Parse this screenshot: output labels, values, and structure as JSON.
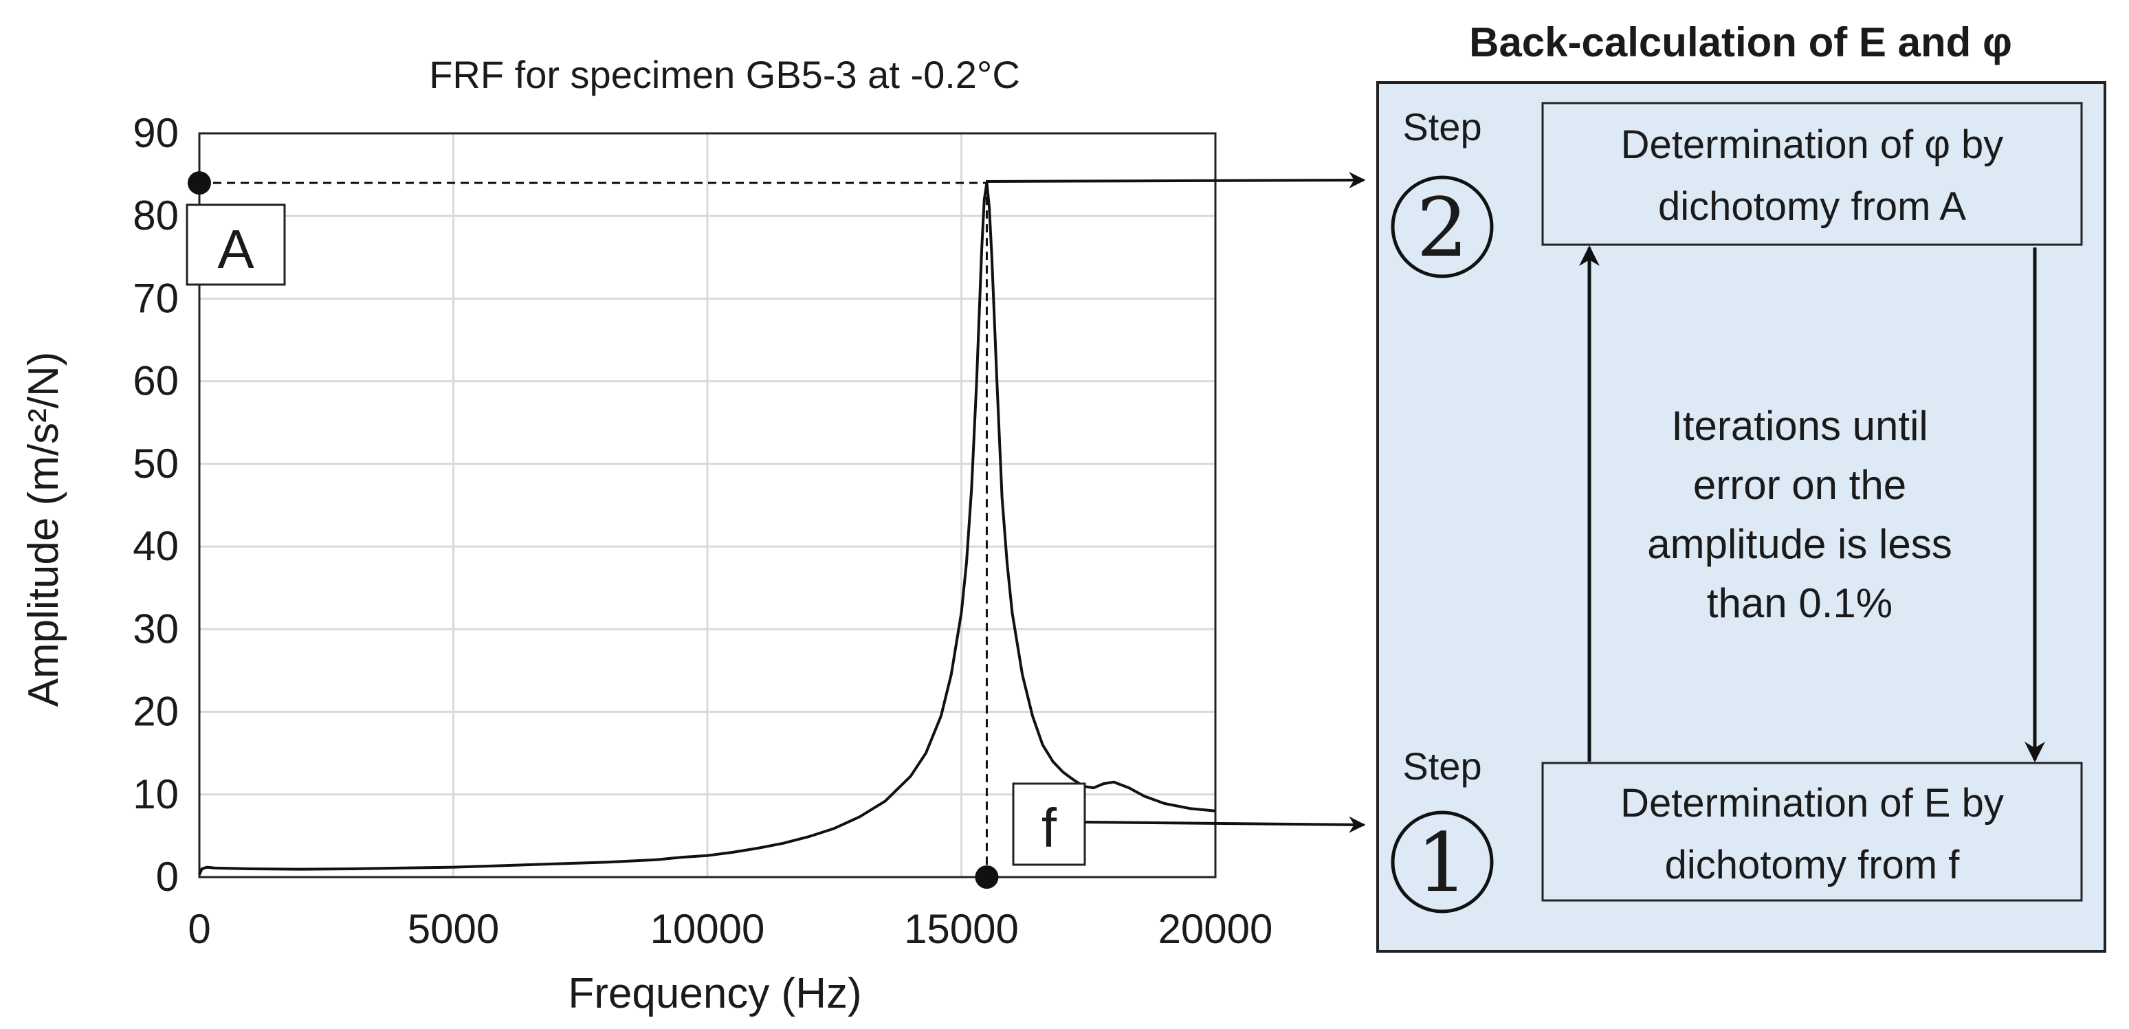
{
  "chart_data": {
    "type": "line",
    "title": "FRF for specimen GB5-3 at -0.2°C",
    "xlabel": "Frequency (Hz)",
    "ylabel": "Amplitude (m/s²/N)",
    "xlim": [
      0,
      20000
    ],
    "ylim": [
      0,
      90
    ],
    "xticks": [
      0,
      5000,
      10000,
      15000,
      20000
    ],
    "yticks": [
      0,
      10,
      20,
      30,
      40,
      50,
      60,
      70,
      80,
      90
    ],
    "grid": true,
    "series": [
      {
        "color": "#111111",
        "x": [
          0,
          50,
          150,
          300,
          1000,
          2000,
          3000,
          4000,
          5000,
          6000,
          7000,
          8000,
          9000,
          9500,
          10000,
          10500,
          11000,
          11500,
          12000,
          12500,
          13000,
          13500,
          14000,
          14300,
          14600,
          14800,
          15000,
          15100,
          15200,
          15300,
          15400,
          15450,
          15500,
          15550,
          15600,
          15700,
          15800,
          15900,
          16000,
          16200,
          16400,
          16600,
          16800,
          17000,
          17200,
          17400,
          17600,
          17800,
          18000,
          18300,
          18600,
          19000,
          19500,
          20000
        ],
        "y": [
          0.3,
          1.0,
          1.2,
          1.1,
          1.0,
          0.95,
          1.0,
          1.1,
          1.2,
          1.4,
          1.6,
          1.8,
          2.1,
          2.4,
          2.6,
          3.0,
          3.5,
          4.1,
          4.9,
          5.9,
          7.3,
          9.2,
          12.2,
          15.0,
          19.5,
          24.5,
          32.0,
          38.0,
          47.0,
          60.0,
          76.0,
          82.0,
          84.0,
          81.0,
          75.0,
          60.0,
          46.0,
          38.0,
          32.0,
          24.5,
          19.5,
          16.0,
          14.0,
          12.7,
          11.8,
          11.0,
          10.8,
          11.3,
          11.5,
          10.8,
          9.8,
          8.9,
          8.3,
          8.0
        ]
      }
    ],
    "annotations": {
      "peak_label": "A",
      "frequency_label": "f",
      "peak_amplitude": 84,
      "peak_frequency": 15500
    }
  },
  "flowchart": {
    "title": "Back-calculation of E and φ",
    "step_word": "Step",
    "step2_number": "2",
    "step1_number": "1",
    "step2_box": [
      "Determination of φ by",
      "dichotomy from A"
    ],
    "step1_box": [
      "Determination of E by",
      "dichotomy from f"
    ],
    "iteration_text": [
      "Iterations until",
      "error on the",
      "amplitude is less",
      "than 0.1%"
    ],
    "panel_fill": "#ddeaf6"
  }
}
